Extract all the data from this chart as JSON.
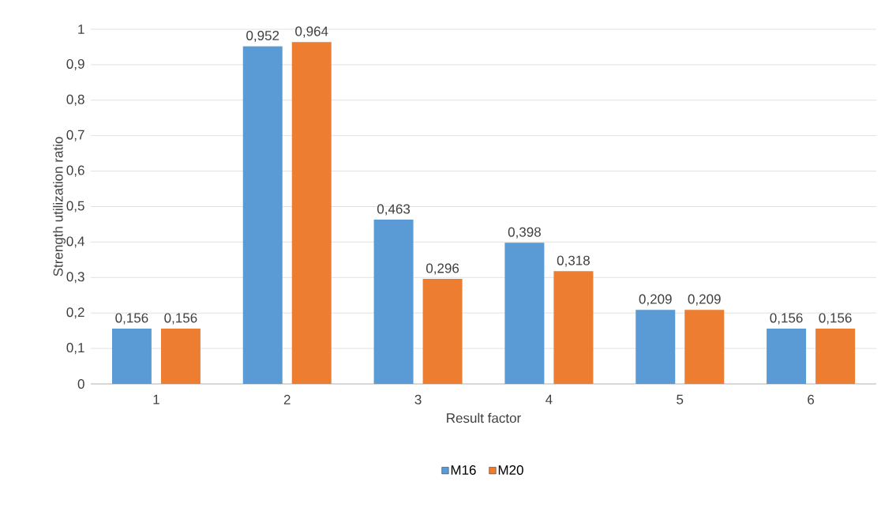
{
  "chart_data": {
    "type": "bar",
    "xlabel": "Result factor",
    "ylabel": "Strength utilization ratio",
    "categories": [
      "1",
      "2",
      "3",
      "4",
      "5",
      "6"
    ],
    "series": [
      {
        "name": "M16",
        "color": "#5b9bd5",
        "values": [
          0.156,
          0.952,
          0.463,
          0.398,
          0.209,
          0.156
        ],
        "value_labels": [
          "0,156",
          "0,952",
          "0,463",
          "0,398",
          "0,209",
          "0,156"
        ]
      },
      {
        "name": "M20",
        "color": "#ed7d31",
        "values": [
          0.156,
          0.964,
          0.296,
          0.318,
          0.209,
          0.156
        ],
        "value_labels": [
          "0,156",
          "0,964",
          "0,296",
          "0,318",
          "0,209",
          "0,156"
        ]
      }
    ],
    "ylim": [
      0,
      1
    ],
    "yticks": [
      0,
      {
        "value": 0.1,
        "label": "0,1"
      },
      {
        "value": 0.2,
        "label": "0,2"
      },
      {
        "value": 0.3,
        "label": "0,3"
      },
      {
        "value": 0.4,
        "label": "0,4"
      },
      {
        "value": 0.5,
        "label": "0,5"
      },
      {
        "value": 0.6,
        "label": "0,6"
      },
      {
        "value": 0.7,
        "label": "0,7"
      },
      {
        "value": 0.8,
        "label": "0,8"
      },
      {
        "value": 0.9,
        "label": "0,9"
      },
      1
    ],
    "grid": "y",
    "legend": "bottom"
  }
}
